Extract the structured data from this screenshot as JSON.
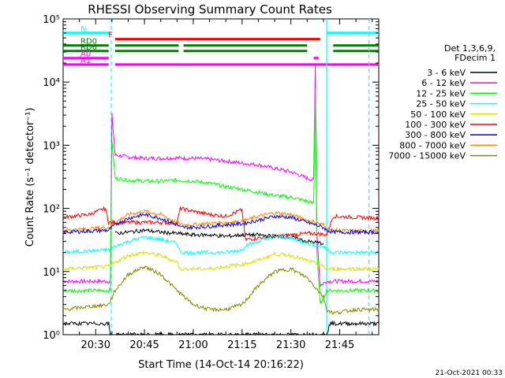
{
  "chart_data": {
    "type": "line",
    "title": "RHESSI Observing Summary Count Rates",
    "xlabel": "Start Time (14-Oct-14 20:16:22)",
    "ylabel": "Count Rate (s⁻¹ detector⁻¹)",
    "yscale": "log",
    "ylim": [
      1,
      100000
    ],
    "xlim_minutes": [
      20.0,
      117.0
    ],
    "x_ticks": [
      {
        "label": "20:30",
        "minute": 30
      },
      {
        "label": "20:45",
        "minute": 45
      },
      {
        "label": "21:00",
        "minute": 60
      },
      {
        "label": "21:15",
        "minute": 75
      },
      {
        "label": "21:30",
        "minute": 90
      },
      {
        "label": "21:45",
        "minute": 105
      }
    ],
    "y_ticks": [
      {
        "label": "10⁰",
        "value": 1
      },
      {
        "label": "10¹",
        "value": 10
      },
      {
        "label": "10²",
        "value": 100
      },
      {
        "label": "10³",
        "value": 1000
      },
      {
        "label": "10⁴",
        "value": 10000
      },
      {
        "label": "10⁵",
        "value": 100000
      }
    ],
    "legend": {
      "position": "right",
      "header": [
        "Det 1,3,6,9,",
        "FDecim 1"
      ],
      "entries": [
        {
          "name": "3 - 6 keV",
          "color": "#000000"
        },
        {
          "name": "6 - 12 keV",
          "color": "#ff00ff"
        },
        {
          "name": "12 - 25 keV",
          "color": "#00ff00"
        },
        {
          "name": "25 - 50 keV",
          "color": "#00ffff"
        },
        {
          "name": "50 - 100 keV",
          "color": "#dddd00"
        },
        {
          "name": "100 - 300 keV",
          "color": "#ff0000"
        },
        {
          "name": "300 - 800 keV",
          "color": "#0000ff"
        },
        {
          "name": "800 - 7000 keV",
          "color": "#ff8800"
        },
        {
          "name": "7000 - 15000 keV",
          "color": "#888800"
        }
      ]
    },
    "flags": [
      {
        "label": "N",
        "color": "#00ffff",
        "level": 60000,
        "segments": [
          [
            20,
            34.5
          ],
          [
            101,
            117
          ]
        ]
      },
      {
        "label": "F",
        "color": "#ff0000",
        "level": 48000,
        "segments": [
          [
            36,
            99
          ]
        ]
      },
      {
        "label": "RD0",
        "color": "#008000",
        "level": 38000,
        "segments": [
          [
            20,
            34
          ],
          [
            36,
            55.5
          ],
          [
            57,
            95
          ],
          [
            103,
            117
          ]
        ]
      },
      {
        "label": "RD6",
        "color": "#008000",
        "level": 31000,
        "segments": [
          [
            20,
            34
          ],
          [
            36,
            55.5
          ],
          [
            57,
            95
          ],
          [
            103,
            117
          ]
        ]
      },
      {
        "label": "A0",
        "color": "#ff00ff",
        "level": 24000,
        "segments": [
          [
            20,
            34
          ],
          [
            97,
            98.5
          ]
        ]
      },
      {
        "label": "A1",
        "color": "#ff00ff",
        "level": 19000,
        "segments": [
          [
            20,
            34
          ],
          [
            36,
            117
          ]
        ]
      }
    ],
    "markers": [
      {
        "minute": 34.8,
        "color": "#00ffff",
        "style": "dashed"
      },
      {
        "minute": 101.0,
        "color": "#00ffff",
        "style": "solid"
      },
      {
        "minute": 114.0,
        "color": "#00ffff",
        "style": "dashed"
      }
    ],
    "series": [
      {
        "name": "6 - 12 keV",
        "color": "#ff00ff",
        "x": [
          20,
          34,
          34.5,
          35,
          36,
          40,
          45,
          50,
          55,
          60,
          65,
          70,
          75,
          80,
          85,
          90,
          95,
          97,
          97.5,
          98,
          99,
          101,
          105,
          110,
          117
        ],
        "y": [
          7,
          7,
          7,
          3000,
          700,
          650,
          620,
          620,
          630,
          620,
          600,
          560,
          520,
          490,
          430,
          380,
          300,
          280,
          20000,
          40,
          6,
          7,
          7,
          7,
          7
        ]
      },
      {
        "name": "12 - 25 keV",
        "color": "#00ff00",
        "x": [
          20,
          34,
          34.5,
          35,
          36,
          40,
          45,
          50,
          55,
          60,
          65,
          70,
          75,
          80,
          85,
          90,
          95,
          97,
          97.5,
          98,
          99,
          101,
          105,
          110,
          117
        ],
        "y": [
          5,
          5,
          5,
          1200,
          300,
          280,
          270,
          270,
          280,
          270,
          250,
          220,
          200,
          180,
          160,
          150,
          130,
          120,
          8000,
          20,
          3,
          5,
          5,
          5,
          5
        ]
      },
      {
        "name": "100 - 300 keV",
        "color": "#ff0000",
        "x": [
          20,
          28,
          33,
          34,
          36,
          40,
          45,
          50,
          55,
          56,
          60,
          65,
          70,
          75,
          76,
          80,
          85,
          90,
          95,
          97,
          98,
          101,
          103,
          110,
          117
        ],
        "y": [
          72,
          80,
          100,
          60,
          60,
          60,
          60,
          60,
          58,
          100,
          90,
          80,
          75,
          95,
          32,
          34,
          36,
          38,
          40,
          40,
          40,
          38,
          75,
          72,
          70
        ]
      },
      {
        "name": "800 - 7000 keV",
        "color": "#ff8800",
        "x": [
          20,
          34,
          36,
          40,
          45,
          50,
          55,
          56,
          60,
          65,
          70,
          75,
          80,
          85,
          90,
          95,
          100,
          101,
          103,
          110,
          117
        ],
        "y": [
          45,
          50,
          60,
          80,
          90,
          80,
          60,
          55,
          55,
          58,
          60,
          62,
          75,
          85,
          80,
          65,
          55,
          48,
          45,
          44,
          44
        ]
      },
      {
        "name": "300 - 800 keV",
        "color": "#0000ff",
        "x": [
          20,
          34,
          36,
          40,
          45,
          50,
          55,
          56,
          60,
          65,
          70,
          75,
          80,
          85,
          90,
          95,
          100,
          101,
          103,
          110,
          117
        ],
        "y": [
          42,
          45,
          55,
          70,
          80,
          70,
          55,
          50,
          50,
          52,
          55,
          57,
          65,
          75,
          72,
          60,
          50,
          45,
          42,
          42,
          42
        ]
      },
      {
        "name": "3 - 6 keV",
        "color": "#000000",
        "x": [
          36,
          40,
          45,
          50,
          55,
          60,
          65,
          70,
          75,
          80,
          85,
          90,
          95,
          100
        ],
        "y": [
          40,
          42,
          45,
          42,
          40,
          38,
          38,
          36,
          38,
          38,
          36,
          35,
          30,
          28
        ]
      },
      {
        "name": "25 - 50 keV",
        "color": "#00ffff",
        "x": [
          20,
          34,
          36,
          40,
          45,
          50,
          55,
          56,
          60,
          65,
          70,
          75,
          76,
          80,
          85,
          90,
          95,
          100,
          101,
          103,
          110,
          117
        ],
        "y": [
          20,
          22,
          25,
          30,
          35,
          32,
          28,
          20,
          20,
          20,
          20,
          22,
          26,
          30,
          36,
          34,
          28,
          25,
          22,
          20,
          20,
          20
        ]
      },
      {
        "name": "50 - 100 keV",
        "color": "#dddd00",
        "x": [
          20,
          34,
          36,
          40,
          45,
          50,
          55,
          56,
          60,
          65,
          70,
          75,
          80,
          85,
          90,
          95,
          100,
          101,
          103,
          110,
          117
        ],
        "y": [
          11,
          12,
          14,
          18,
          20,
          18,
          14,
          11,
          11,
          11,
          12,
          13,
          15,
          19,
          18,
          15,
          12,
          11,
          11,
          11,
          11
        ]
      },
      {
        "name": "7000 - 15000 keV",
        "color": "#888800",
        "x": [
          20,
          34,
          36,
          40,
          45,
          50,
          55,
          60,
          65,
          70,
          75,
          80,
          85,
          90,
          95,
          100,
          101,
          103,
          110,
          117
        ],
        "y": [
          2.5,
          3,
          5,
          9,
          12,
          9,
          5,
          3,
          2.5,
          2.5,
          3,
          6,
          10,
          11,
          8,
          4,
          2.5,
          2.2,
          2.5,
          2.5
        ]
      },
      {
        "name": "3 - 6 keV (low)",
        "color": "#000000",
        "x": [
          20,
          34,
          34.5,
          101,
          102,
          110,
          117
        ],
        "y": [
          1.5,
          1.5,
          1,
          1,
          1.5,
          1.5,
          1.5
        ]
      }
    ],
    "footer_date": "21-Oct-2021 00:33"
  }
}
